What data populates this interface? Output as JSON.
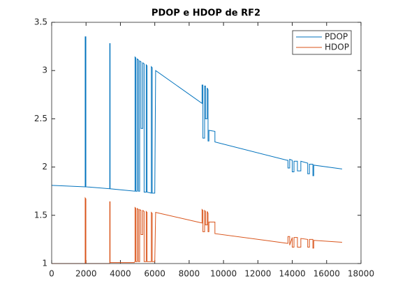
{
  "chart_data": {
    "type": "line",
    "title": "PDOP e HDOP de RF2",
    "xlim": [
      0,
      18000
    ],
    "xticks": [
      0,
      2000,
      4000,
      6000,
      8000,
      10000,
      12000,
      14000,
      16000,
      18000
    ],
    "ylim": [
      1,
      3.5
    ],
    "yticks": [
      1,
      1.5,
      2,
      2.5,
      3,
      3.5
    ],
    "grid": false,
    "legend": "northeast",
    "series": [
      {
        "name": "PDOP",
        "color": "#0072BD",
        "x": [
          0,
          1950,
          1950,
          1990,
          1990,
          3380,
          3380,
          3400,
          3400,
          4850,
          4850,
          4900,
          4900,
          4980,
          4980,
          5050,
          5050,
          5120,
          5120,
          5200,
          5200,
          5300,
          5300,
          5380,
          5380,
          5500,
          5500,
          5550,
          5550,
          5800,
          5800,
          5850,
          5850,
          6000,
          6050,
          8750,
          8750,
          8800,
          8800,
          8900,
          8900,
          8950,
          8950,
          9050,
          9050,
          9100,
          9100,
          9150,
          9150,
          9500,
          9500,
          13700,
          13750,
          13750,
          13850,
          13850,
          14000,
          14000,
          14100,
          14100,
          14300,
          14300,
          14500,
          14500,
          14900,
          14900,
          15000,
          15000,
          15200,
          15200,
          15250,
          15250,
          16900
        ],
        "values": [
          1.81,
          1.795,
          3.35,
          3.35,
          1.795,
          1.775,
          3.28,
          3.28,
          1.775,
          1.75,
          3.14,
          3.13,
          1.75,
          1.75,
          3.12,
          3.11,
          1.75,
          1.75,
          3.1,
          3.09,
          2.4,
          2.4,
          3.08,
          3.07,
          1.74,
          1.74,
          3.06,
          3.05,
          1.74,
          1.73,
          3.04,
          3.03,
          1.73,
          1.73,
          3.0,
          2.66,
          2.85,
          2.85,
          2.3,
          2.3,
          2.84,
          2.84,
          2.5,
          2.5,
          2.82,
          2.8,
          2.27,
          2.27,
          2.38,
          2.37,
          2.26,
          2.07,
          2.07,
          1.99,
          1.99,
          2.08,
          2.07,
          1.95,
          1.95,
          2.06,
          2.06,
          1.96,
          1.96,
          2.06,
          2.04,
          1.93,
          1.93,
          2.03,
          2.03,
          1.91,
          1.91,
          2.02,
          1.98
        ]
      },
      {
        "name": "HDOP",
        "color": "#D95319",
        "x": [
          0,
          1950,
          1950,
          1990,
          1990,
          3380,
          3380,
          3400,
          3400,
          4800,
          4850,
          4850,
          4900,
          4900,
          4980,
          4980,
          5050,
          5050,
          5120,
          5120,
          5200,
          5200,
          5300,
          5300,
          5380,
          5380,
          5500,
          5500,
          5550,
          5550,
          5800,
          5800,
          5850,
          5850,
          6000,
          6050,
          8750,
          8750,
          8800,
          8800,
          8900,
          8900,
          8950,
          8950,
          9050,
          9050,
          9100,
          9100,
          9150,
          9150,
          9500,
          9500,
          13700,
          13750,
          13750,
          13850,
          13850,
          14000,
          14000,
          14100,
          14100,
          14300,
          14300,
          14500,
          14500,
          14900,
          14900,
          15000,
          15000,
          15200,
          15200,
          15250,
          15250,
          16900
        ],
        "values": [
          1.0,
          1.0,
          1.68,
          1.67,
          1.0,
          1.0,
          1.64,
          1.64,
          1.01,
          1.01,
          1.02,
          1.58,
          1.57,
          1.02,
          1.02,
          1.57,
          1.56,
          1.02,
          1.02,
          1.56,
          1.55,
          1.3,
          1.3,
          1.55,
          1.54,
          1.02,
          1.02,
          1.54,
          1.53,
          1.02,
          1.02,
          1.53,
          1.52,
          1.02,
          1.02,
          1.53,
          1.42,
          1.56,
          1.55,
          1.33,
          1.33,
          1.55,
          1.54,
          1.4,
          1.4,
          1.54,
          1.52,
          1.33,
          1.33,
          1.43,
          1.43,
          1.31,
          1.21,
          1.21,
          1.28,
          1.28,
          1.19,
          1.27,
          1.17,
          1.17,
          1.27,
          1.27,
          1.17,
          1.17,
          1.26,
          1.25,
          1.17,
          1.17,
          1.25,
          1.25,
          1.16,
          1.16,
          1.24,
          1.22
        ]
      }
    ]
  }
}
